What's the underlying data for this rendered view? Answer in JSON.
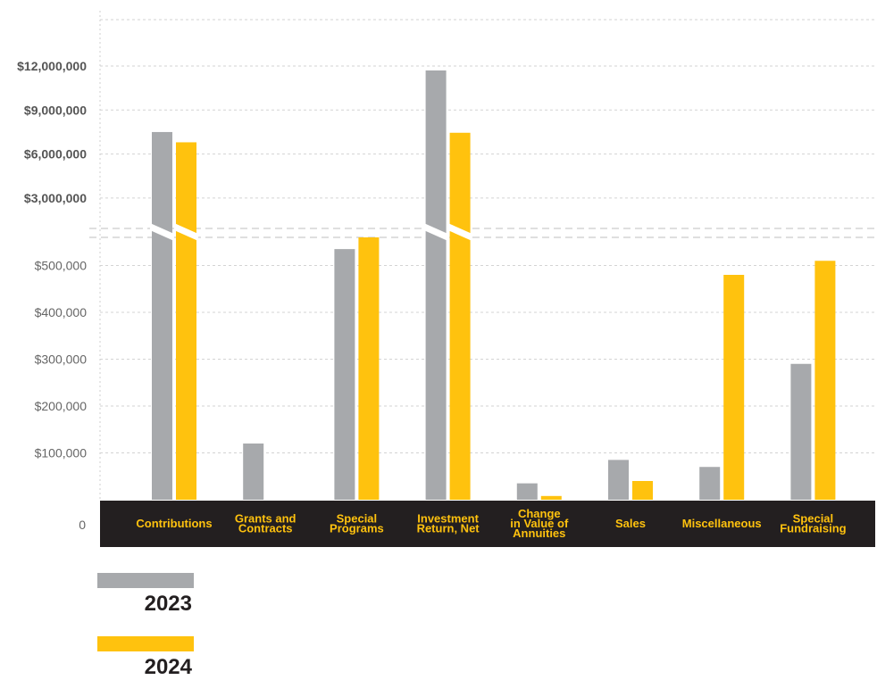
{
  "chart_data": {
    "type": "bar",
    "categories": [
      [
        "Contributions"
      ],
      [
        "Grants and",
        "Contracts"
      ],
      [
        "Special",
        "Programs"
      ],
      [
        "Investment",
        "Return, Net"
      ],
      [
        "Change",
        "in Value of",
        "Annuities"
      ],
      [
        "Sales"
      ],
      [
        "Miscellaneous"
      ],
      [
        "Special",
        "Fundraising"
      ]
    ],
    "series": [
      {
        "name": "2023",
        "color": "#a7a9ac",
        "values": [
          7500000,
          120000,
          535000,
          11700000,
          35000,
          85000,
          70000,
          290000
        ]
      },
      {
        "name": "2024",
        "color": "#ffc20e",
        "values": [
          6800000,
          0,
          560000,
          7450000,
          8000,
          40000,
          480000,
          510000
        ]
      }
    ],
    "y_axis": {
      "broken": true,
      "lower_ticks": [
        {
          "value": 0,
          "label": "0"
        },
        {
          "value": 100000,
          "label": "$100,000"
        },
        {
          "value": 200000,
          "label": "$200,000"
        },
        {
          "value": 300000,
          "label": "$300,000"
        },
        {
          "value": 400000,
          "label": "$400,000"
        },
        {
          "value": 500000,
          "label": "$500,000"
        }
      ],
      "upper_ticks": [
        {
          "value": 3000000,
          "label": "$3,000,000"
        },
        {
          "value": 6000000,
          "label": "$6,000,000"
        },
        {
          "value": 9000000,
          "label": "$9,000,000"
        },
        {
          "value": 12000000,
          "label": "$12,000,000"
        }
      ]
    },
    "grid": true,
    "legend_position": "bottom-left",
    "category_band_color": "#231f20",
    "category_label_color": "#ffc20e"
  }
}
